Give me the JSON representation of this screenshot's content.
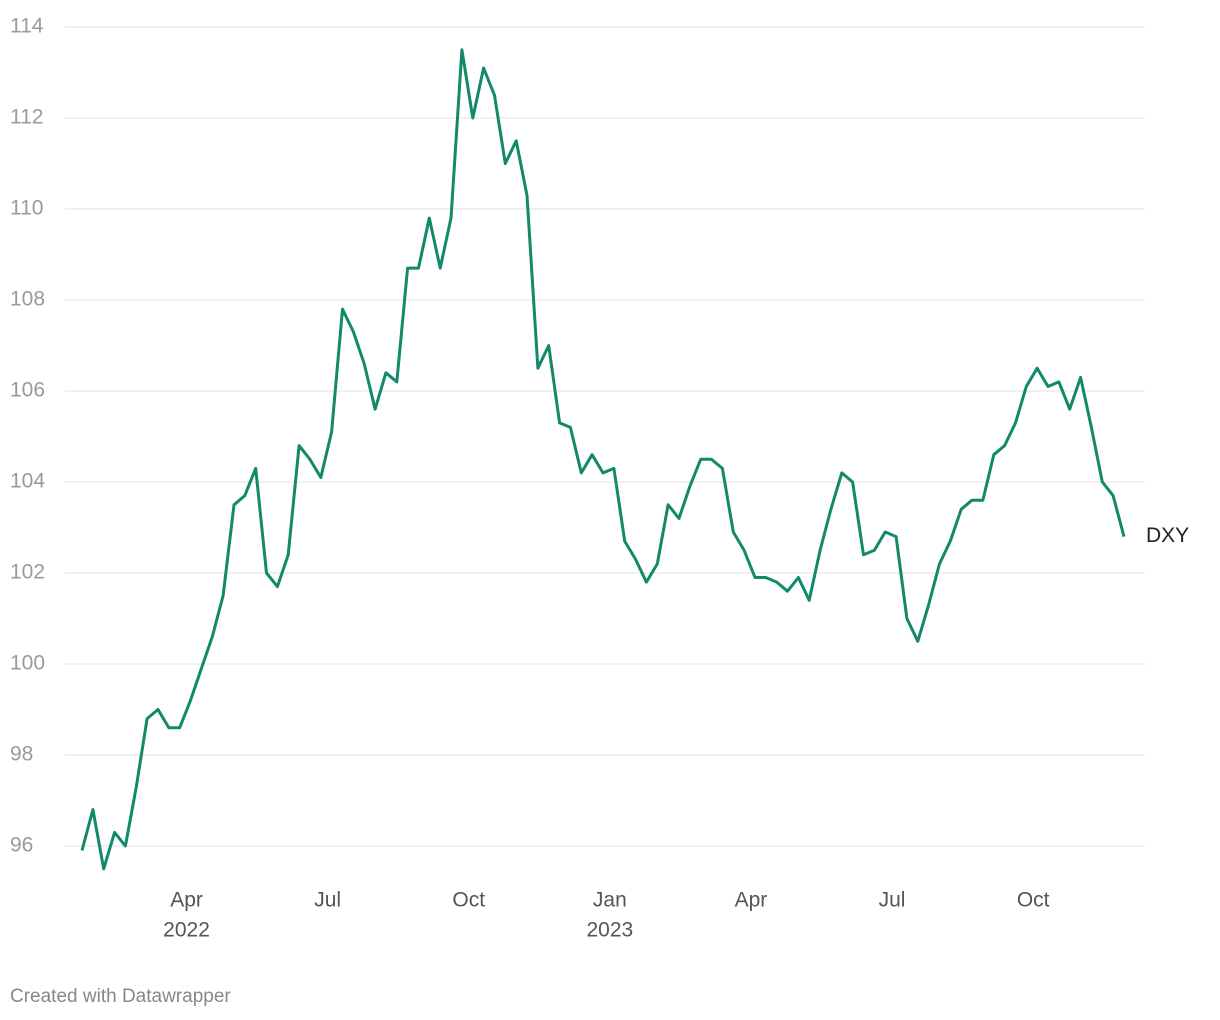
{
  "chart_data": {
    "type": "line",
    "categories": [
      null,
      null,
      null,
      null,
      null,
      null,
      null,
      null,
      null,
      null,
      "Apr",
      null,
      null,
      null,
      null,
      null,
      null,
      null,
      null,
      null,
      null,
      null,
      null,
      "Jul",
      null,
      null,
      null,
      null,
      null,
      null,
      null,
      null,
      null,
      null,
      null,
      null,
      "Oct",
      null,
      null,
      null,
      null,
      null,
      null,
      null,
      null,
      null,
      null,
      null,
      null,
      "Jan",
      null,
      null,
      null,
      null,
      null,
      null,
      null,
      null,
      null,
      null,
      null,
      null,
      "Apr",
      null,
      null,
      null,
      null,
      null,
      null,
      null,
      null,
      null,
      null,
      null,
      null,
      "Jul",
      null,
      null,
      null,
      null,
      null,
      null,
      null,
      null,
      null,
      null,
      null,
      null,
      "Oct",
      null,
      null,
      null,
      null,
      null,
      null,
      null,
      null
    ],
    "category_years": [
      null,
      null,
      null,
      null,
      null,
      null,
      null,
      null,
      null,
      null,
      "2022",
      null,
      null,
      null,
      null,
      null,
      null,
      null,
      null,
      null,
      null,
      null,
      null,
      null,
      null,
      null,
      null,
      null,
      null,
      null,
      null,
      null,
      null,
      null,
      null,
      null,
      null,
      null,
      null,
      null,
      null,
      null,
      null,
      null,
      null,
      null,
      null,
      null,
      null,
      "2023",
      null,
      null,
      null,
      null,
      null,
      null,
      null,
      null,
      null,
      null,
      null,
      null,
      null,
      null,
      null,
      null,
      null,
      null,
      null,
      null,
      null,
      null,
      null,
      null,
      null,
      null,
      null,
      null,
      null,
      null,
      null,
      null,
      null,
      null,
      null,
      null,
      null,
      null,
      null,
      null,
      null,
      null,
      null,
      null,
      null,
      null,
      null
    ],
    "series": [
      {
        "name": "DXY",
        "color": "#12896a",
        "values": [
          95.9,
          96.8,
          95.5,
          96.3,
          96.0,
          97.3,
          98.8,
          99.0,
          98.6,
          98.6,
          99.2,
          99.9,
          100.6,
          101.5,
          103.5,
          103.7,
          104.3,
          102.0,
          101.7,
          102.4,
          104.8,
          104.5,
          104.1,
          105.1,
          107.8,
          107.3,
          106.6,
          105.6,
          106.4,
          106.2,
          108.7,
          108.7,
          109.8,
          108.7,
          109.8,
          113.5,
          112.0,
          113.1,
          112.5,
          111.0,
          111.5,
          110.3,
          106.5,
          107.0,
          105.3,
          105.2,
          104.2,
          104.6,
          104.2,
          104.3,
          102.7,
          102.3,
          101.8,
          102.2,
          103.5,
          103.2,
          103.9,
          104.5,
          104.5,
          104.3,
          102.9,
          102.5,
          101.9,
          101.9,
          101.8,
          101.6,
          101.9,
          101.4,
          102.5,
          103.4,
          104.2,
          104.0,
          102.4,
          102.5,
          102.9,
          102.8,
          101.0,
          100.5,
          101.3,
          102.2,
          102.7,
          103.4,
          103.6,
          103.6,
          104.6,
          104.8,
          105.3,
          106.1,
          106.5,
          106.1,
          106.2,
          105.6,
          106.3,
          105.2,
          104.0,
          103.7,
          102.8
        ]
      }
    ],
    "ylim": [
      95,
      114.2
    ],
    "yticks": [
      96,
      98,
      100,
      102,
      104,
      106,
      108,
      110,
      112,
      114
    ],
    "grid": true,
    "footer": "Created with Datawrapper"
  }
}
